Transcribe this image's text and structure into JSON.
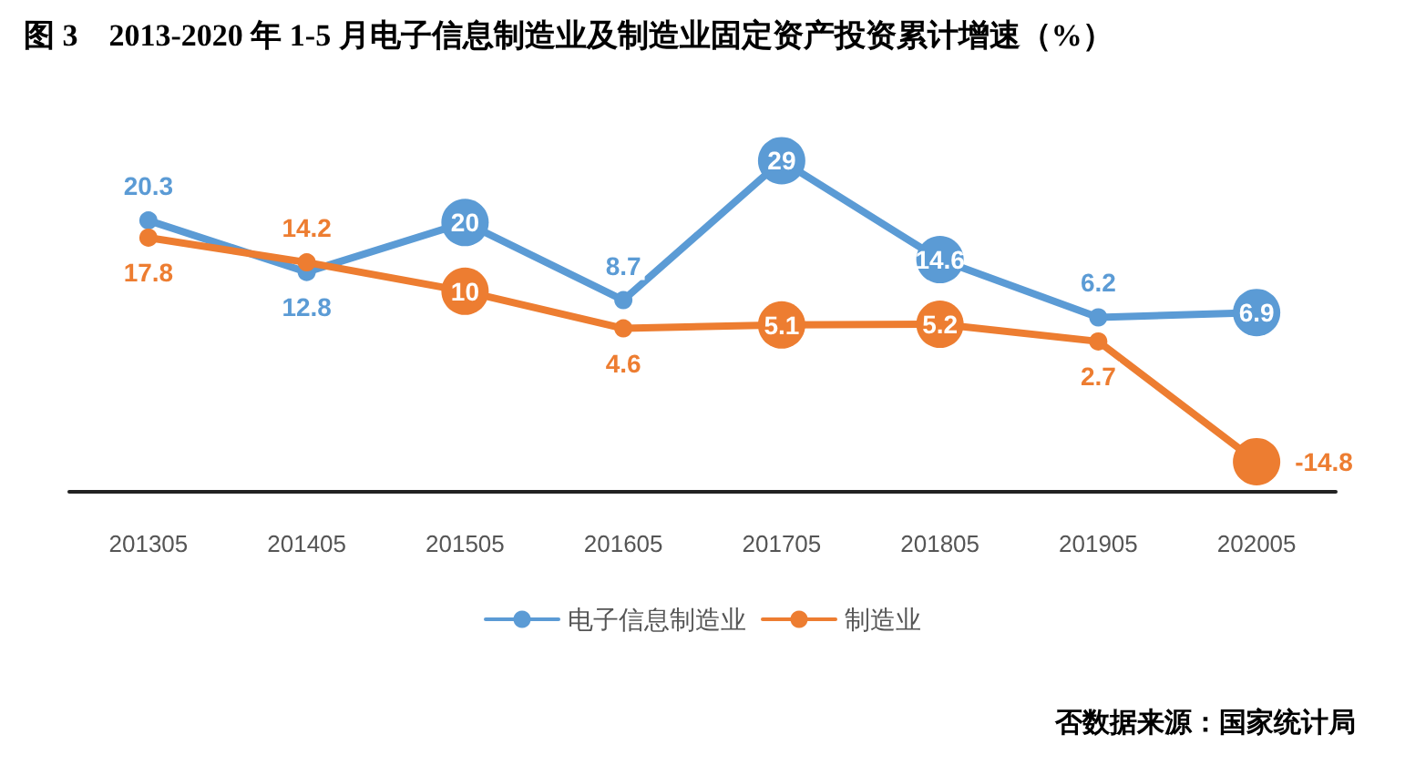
{
  "chart_data": {
    "type": "line",
    "title": "图 3　2013-2020 年 1-5 月电子信息制造业及制造业固定资产投资累计增速（%）",
    "categories": [
      "201305",
      "201405",
      "201505",
      "201605",
      "201705",
      "201805",
      "201905",
      "202005"
    ],
    "series": [
      {
        "name": "电子信息制造业",
        "color": "#5b9bd5",
        "values": [
          20.3,
          12.8,
          20,
          8.7,
          29,
          14.6,
          6.2,
          6.9
        ]
      },
      {
        "name": "制造业",
        "color": "#ed7d31",
        "values": [
          17.8,
          14.2,
          10,
          4.6,
          5.1,
          5.2,
          2.7,
          -14.8
        ]
      }
    ],
    "data_labels": true,
    "marker": "circle",
    "grid": false,
    "legend": "bottom",
    "annotations": [
      "否数据来源：国家统计局"
    ]
  }
}
